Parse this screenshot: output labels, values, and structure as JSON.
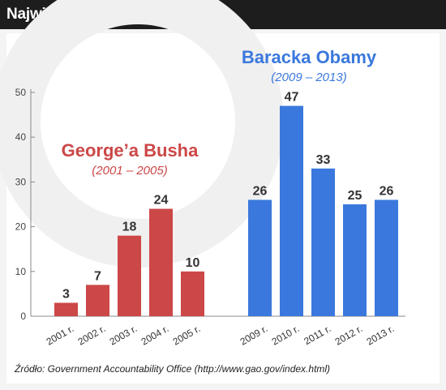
{
  "header": {
    "title": "Największe regulacje"
  },
  "source": "Źródło: Government Accountability Office (http://www.gao.gov/index.html)",
  "colors": {
    "bush": "#cc4747",
    "obama": "#3a78dd",
    "axis": "#888888"
  },
  "chart_data": {
    "type": "bar",
    "title": "Największe regulacje",
    "xlabel": "",
    "ylabel": "",
    "ylim": [
      0,
      50
    ],
    "yticks": [
      0,
      10,
      20,
      30,
      40,
      50
    ],
    "grid": false,
    "groups": [
      {
        "name": "George’a Busha",
        "years": "(2001 – 2005)",
        "color": "#cc4747",
        "categories": [
          "2001 r.",
          "2002 r.",
          "2003 r.",
          "2004 r.",
          "2005 r."
        ],
        "values": [
          3,
          7,
          18,
          24,
          10
        ]
      },
      {
        "name": "Baracka Obamy",
        "years": "(2009 – 2013)",
        "color": "#3a78dd",
        "categories": [
          "2009 r.",
          "2010 r.",
          "2011 r.",
          "2012 r.",
          "2013 r."
        ],
        "values": [
          26,
          47,
          33,
          25,
          26
        ]
      }
    ]
  }
}
